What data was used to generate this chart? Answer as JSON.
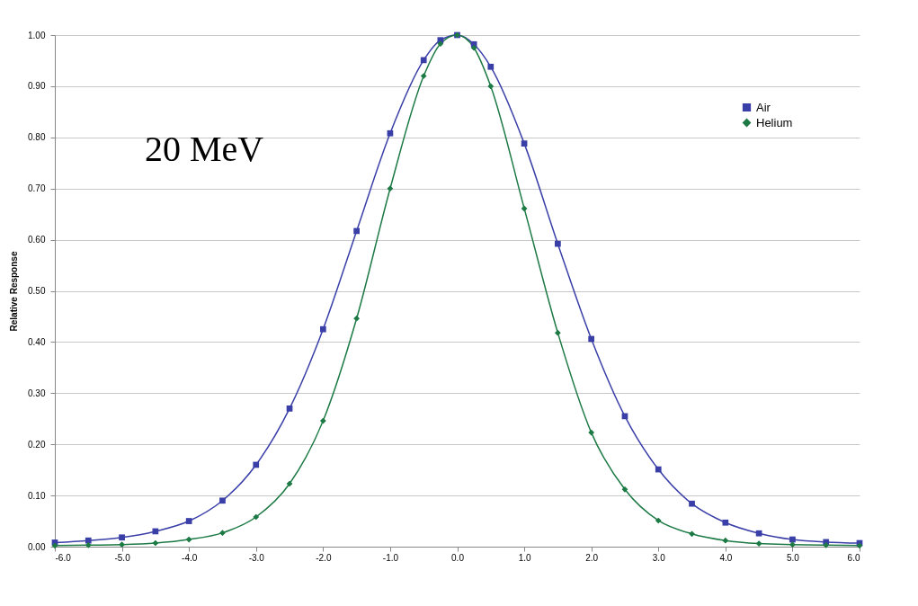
{
  "chart_data": {
    "type": "line",
    "ylabel": "Relative Response",
    "x": [
      -6,
      -5.5,
      -5,
      -4.5,
      -4,
      -3.5,
      -3,
      -2.5,
      -2,
      -1.5,
      -1,
      -0.5,
      -0.25,
      0,
      0.25,
      0.5,
      1,
      1.5,
      2,
      2.5,
      3,
      3.5,
      4,
      4.5,
      5,
      5.5,
      6
    ],
    "series": [
      {
        "name": "Air",
        "color": "#3a3fa8",
        "marker": "square",
        "values": [
          0.008,
          0.012,
          0.018,
          0.03,
          0.05,
          0.09,
          0.16,
          0.27,
          0.425,
          0.617,
          0.808,
          0.951,
          0.99,
          1.0,
          0.982,
          0.938,
          0.788,
          0.592,
          0.406,
          0.255,
          0.151,
          0.084,
          0.047,
          0.026,
          0.014,
          0.009,
          0.007
        ]
      },
      {
        "name": "Helium",
        "color": "#1d7a45",
        "marker": "diamond",
        "values": [
          0.002,
          0.003,
          0.004,
          0.007,
          0.014,
          0.027,
          0.058,
          0.123,
          0.246,
          0.446,
          0.7,
          0.92,
          0.983,
          1.0,
          0.975,
          0.9,
          0.661,
          0.418,
          0.223,
          0.112,
          0.051,
          0.025,
          0.012,
          0.006,
          0.004,
          0.003,
          0.002
        ]
      }
    ],
    "xlim": [
      -6,
      6
    ],
    "xticks": [
      {
        "value": -6,
        "label": "-6.0"
      },
      {
        "value": -5,
        "label": "-5.0"
      },
      {
        "value": -4,
        "label": "-4.0"
      },
      {
        "value": -3,
        "label": "-3.0"
      },
      {
        "value": -2,
        "label": "-2.0"
      },
      {
        "value": -1,
        "label": "-1.0"
      },
      {
        "value": 0,
        "label": "0.0"
      },
      {
        "value": 1,
        "label": "1.0"
      },
      {
        "value": 2,
        "label": "2.0"
      },
      {
        "value": 3,
        "label": "3.0"
      },
      {
        "value": 4,
        "label": "4.0"
      },
      {
        "value": 5,
        "label": "5.0"
      },
      {
        "value": 6,
        "label": "6.0"
      }
    ],
    "ylim": [
      0,
      1
    ],
    "yticks": [
      {
        "value": 0,
        "label": "0.00"
      },
      {
        "value": 0.1,
        "label": "0.10"
      },
      {
        "value": 0.2,
        "label": "0.20"
      },
      {
        "value": 0.3,
        "label": "0.30"
      },
      {
        "value": 0.4,
        "label": "0.40"
      },
      {
        "value": 0.5,
        "label": "0.50"
      },
      {
        "value": 0.6,
        "label": "0.60"
      },
      {
        "value": 0.7,
        "label": "0.70"
      },
      {
        "value": 0.8,
        "label": "0.80"
      },
      {
        "value": 0.9,
        "label": "0.90"
      },
      {
        "value": 1,
        "label": "1.00"
      }
    ],
    "grid": "y",
    "legend": "top right",
    "line_style": "solid",
    "annotations": [
      "20 MeV"
    ]
  }
}
